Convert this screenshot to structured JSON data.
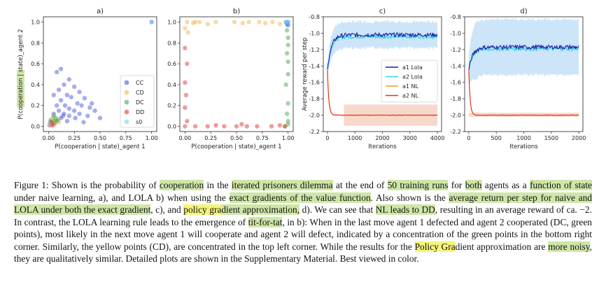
{
  "colors": {
    "CC": "#4a5bdb",
    "CD": "#f3b64a",
    "DC": "#4ca94c",
    "DD": "#e03a3a",
    "s0": "#6fd3f5",
    "a1_lola": "#1c1ca6",
    "a2_lola": "#2ad6e6",
    "a1_nl": "#f29a1a",
    "a2_nl": "#e0321e",
    "lola_band": "#bcdcf7",
    "nl_band": "#f7c8b6",
    "highlight_green": "#cfe6a8",
    "highlight_yellow": "#f4f57a"
  },
  "chart_data": [
    {
      "panel": "a)",
      "type": "scatter",
      "xlabel": "P(cooperation | state)_agent 1",
      "ylabel": "P(cooperation | state)_agent 2",
      "xlim": [
        -0.05,
        1.05
      ],
      "ylim": [
        -0.05,
        1.05
      ],
      "xticks": [
        "0.00",
        "0.25",
        "0.50",
        "0.75",
        "1.00"
      ],
      "yticks": [
        "0.0",
        "0.2",
        "0.4",
        "0.6",
        "0.8",
        "1.0"
      ],
      "legend": [
        "CC",
        "CD",
        "DC",
        "DD",
        "s0"
      ],
      "legend_loc": "lower right",
      "series": [
        {
          "name": "CC",
          "points": [
            [
              0.12,
              0.55
            ],
            [
              0.08,
              0.52
            ],
            [
              0.2,
              0.45
            ],
            [
              0.15,
              0.4
            ],
            [
              0.25,
              0.38
            ],
            [
              0.1,
              0.35
            ],
            [
              0.3,
              0.33
            ],
            [
              0.05,
              0.3
            ],
            [
              0.18,
              0.3
            ],
            [
              0.22,
              0.28
            ],
            [
              0.35,
              0.27
            ],
            [
              0.12,
              0.25
            ],
            [
              0.28,
              0.22
            ],
            [
              0.08,
              0.2
            ],
            [
              0.16,
              0.2
            ],
            [
              0.32,
              0.2
            ],
            [
              0.4,
              0.18
            ],
            [
              0.2,
              0.17
            ],
            [
              0.1,
              0.15
            ],
            [
              0.25,
              0.15
            ],
            [
              0.45,
              0.15
            ],
            [
              0.05,
              0.12
            ],
            [
              0.15,
              0.12
            ],
            [
              0.3,
              0.12
            ],
            [
              0.38,
              0.1
            ],
            [
              0.2,
              0.1
            ],
            [
              0.12,
              0.08
            ],
            [
              0.26,
              0.08
            ],
            [
              0.5,
              0.08
            ],
            [
              0.08,
              0.05
            ],
            [
              0.18,
              0.05
            ],
            [
              0.34,
              0.04
            ],
            [
              0.06,
              0.03
            ],
            [
              0.14,
              0.1
            ],
            [
              0.42,
              0.22
            ],
            [
              1.0,
              1.0
            ]
          ]
        },
        {
          "name": "CD",
          "points": [
            [
              0.02,
              0.03
            ],
            [
              0.05,
              0.06
            ],
            [
              0.08,
              0.05
            ],
            [
              0.04,
              0.08
            ],
            [
              0.06,
              0.02
            ],
            [
              0.1,
              0.04
            ]
          ]
        },
        {
          "name": "DC",
          "points": [
            [
              0.03,
              0.04
            ],
            [
              0.07,
              0.08
            ],
            [
              0.05,
              0.1
            ],
            [
              0.09,
              0.06
            ],
            [
              0.02,
              0.06
            ],
            [
              0.06,
              0.05
            ]
          ]
        },
        {
          "name": "DD",
          "points": [
            [
              0.01,
              0.01
            ],
            [
              0.03,
              0.02
            ],
            [
              0.02,
              0.04
            ],
            [
              0.04,
              0.01
            ]
          ]
        },
        {
          "name": "s0",
          "points": [
            [
              1.0,
              1.0
            ],
            [
              0.01,
              0.02
            ]
          ]
        }
      ]
    },
    {
      "panel": "b)",
      "type": "scatter",
      "xlabel": "P(cooperation | state)_agent 1",
      "xlim": [
        -0.05,
        1.05
      ],
      "ylim": [
        -0.05,
        1.05
      ],
      "xticks": [
        "0.00",
        "0.25",
        "0.50",
        "0.75",
        "1.00"
      ],
      "yticks": [
        "0.0",
        "0.2",
        "0.4",
        "0.6",
        "0.8",
        "1.0"
      ],
      "series": [
        {
          "name": "CC",
          "points": [
            [
              1.0,
              1.0
            ],
            [
              0.99,
              0.98
            ],
            [
              1.0,
              0.97
            ],
            [
              0.98,
              1.0
            ]
          ]
        },
        {
          "name": "CD",
          "points": [
            [
              0.02,
              1.0
            ],
            [
              0.08,
              0.99
            ],
            [
              0.14,
              1.0
            ],
            [
              0.22,
              0.98
            ],
            [
              0.3,
              1.0
            ],
            [
              0.48,
              1.0
            ],
            [
              0.56,
              0.99
            ],
            [
              0.62,
              1.0
            ],
            [
              0.72,
              1.0
            ],
            [
              0.78,
              0.99
            ],
            [
              0.85,
              1.0
            ],
            [
              0.92,
              0.98
            ],
            [
              0.0,
              0.94
            ],
            [
              0.03,
              0.9
            ],
            [
              0.1,
              1.0
            ]
          ]
        },
        {
          "name": "DC",
          "points": [
            [
              1.0,
              0.05
            ],
            [
              0.99,
              0.12
            ],
            [
              1.0,
              0.22
            ],
            [
              0.98,
              0.4
            ],
            [
              1.0,
              0.5
            ],
            [
              1.0,
              0.62
            ],
            [
              0.99,
              0.7
            ],
            [
              1.0,
              0.78
            ],
            [
              1.0,
              0.85
            ],
            [
              0.99,
              0.92
            ],
            [
              1.0,
              0.02
            ],
            [
              0.97,
              0.0
            ]
          ]
        },
        {
          "name": "DD",
          "points": [
            [
              0.0,
              0.0
            ],
            [
              0.02,
              0.05
            ],
            [
              0.0,
              0.18
            ],
            [
              0.01,
              0.3
            ],
            [
              0.0,
              0.42
            ],
            [
              0.02,
              0.6
            ],
            [
              0.0,
              0.75
            ],
            [
              0.1,
              0.0
            ],
            [
              0.22,
              0.0
            ],
            [
              0.3,
              0.01
            ],
            [
              0.38,
              0.0
            ],
            [
              0.5,
              0.0
            ],
            [
              0.55,
              0.02
            ],
            [
              0.6,
              0.0
            ],
            [
              0.7,
              0.0
            ],
            [
              0.84,
              0.0
            ],
            [
              0.92,
              0.01
            ],
            [
              0.97,
              0.0
            ]
          ]
        },
        {
          "name": "s0",
          "points": [
            [
              1.0,
              1.0
            ],
            [
              0.98,
              1.0
            ]
          ]
        }
      ]
    },
    {
      "panel": "c)",
      "type": "line",
      "xlabel": "Iterations",
      "ylabel": "Average reward per step",
      "xlim": [
        -150,
        4150
      ],
      "ylim": [
        -2.2,
        -0.8
      ],
      "xticks": [
        "0",
        "1000",
        "2000",
        "3000",
        "4000"
      ],
      "yticks": [
        "-2.2",
        "-2.0",
        "-1.8",
        "-1.6",
        "-1.4",
        "-1.2",
        "-1.0",
        "-0.8"
      ],
      "legend": [
        "a1 Lola",
        "a2 Lola",
        "a1 NL",
        "a2 NL"
      ],
      "legend_loc": "center right"
    },
    {
      "panel": "d)",
      "type": "line",
      "xlabel": "Iterations",
      "xlim": [
        -75,
        2075
      ],
      "ylim": [
        -2.2,
        -0.8
      ],
      "xticks": [
        "0",
        "500",
        "1000",
        "1500",
        "2000"
      ],
      "yticks": [
        "-2.2",
        "-2.0",
        "-1.8",
        "-1.6",
        "-1.4",
        "-1.2",
        "-1.0",
        "-0.8"
      ]
    }
  ],
  "caption": [
    {
      "t": "Figure 1: Shown is the probability of "
    },
    {
      "t": "cooperation",
      "h": "g"
    },
    {
      "t": " in the "
    },
    {
      "t": "iterated prisoners dilemma",
      "h": "g"
    },
    {
      "t": " at the end of "
    },
    {
      "t": "50 training runs",
      "h": "g"
    },
    {
      "t": " for "
    },
    {
      "t": "both",
      "h": "g"
    },
    {
      "t": " agents as a "
    },
    {
      "t": "function of state",
      "h": "g"
    },
    {
      "t": " under naive learning, a), and LOLA b) when using the "
    },
    {
      "t": "exact gradients of the value function",
      "h": "g"
    },
    {
      "t": ". Also shown is the "
    },
    {
      "t": "average return per step for naive and LOLA under both the exact gradient",
      "h": "g"
    },
    {
      "t": ", c), and "
    },
    {
      "t": "policy gra",
      "h": "y"
    },
    {
      "t": "dient approximation,",
      "h": "g"
    },
    {
      "t": " d). We can see that "
    },
    {
      "t": "NL leads to DD",
      "h": "g"
    },
    {
      "t": ", resulting in an average reward of ca. −2. In contrast, the LOLA learning rule leads to the emergence of "
    },
    {
      "t": "tit-for-tat",
      "h": "g"
    },
    {
      "t": ", in b): When in the last move agent 1 defected and agent 2 cooperated (DC, green points), most likely in the next move agent 1 will cooperate and agent 2 will defect, indicated by a concentration of the green points in the bottom right corner. Similarly, the yellow points (CD), are concentrated in the top left corner. While the results for the "
    },
    {
      "t": "Policy Gra",
      "h": "y"
    },
    {
      "t": "dient approximation are "
    },
    {
      "t": "more noisy",
      "h": "g"
    },
    {
      "t": ", they are qualitatively similar. Detailed plots are shown in the Supplementary Material. Best viewed in color."
    }
  ]
}
